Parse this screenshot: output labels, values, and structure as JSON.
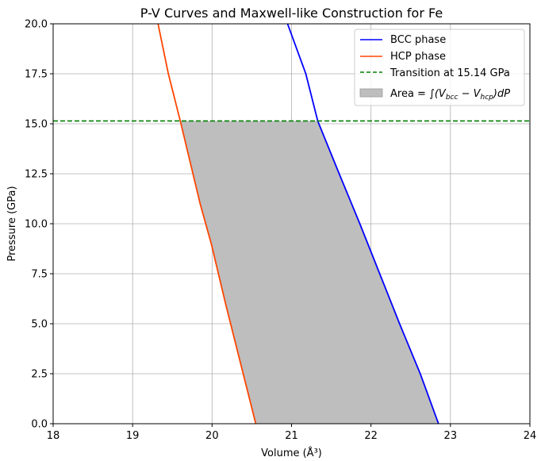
{
  "chart_data": {
    "type": "line",
    "title": "P-V Curves and Maxwell-like Construction for Fe",
    "xlabel": "Volume (Å³)",
    "ylabel": "Pressure (GPa)",
    "xlim": [
      18,
      24
    ],
    "ylim": [
      0,
      20
    ],
    "x_ticks": [
      "18",
      "19",
      "20",
      "21",
      "22",
      "23",
      "24"
    ],
    "y_ticks": [
      "0.0",
      "2.5",
      "5.0",
      "7.5",
      "10.0",
      "12.5",
      "15.0",
      "17.5",
      "20.0"
    ],
    "grid": true,
    "legend_position": "top-right",
    "series": [
      {
        "name": "BCC phase",
        "color": "#0000ff",
        "points": [
          [
            22.85,
            0.0
          ],
          [
            22.62,
            2.5
          ],
          [
            22.36,
            5.0
          ],
          [
            22.11,
            7.5
          ],
          [
            21.86,
            10.0
          ],
          [
            21.6,
            12.5
          ],
          [
            21.33,
            15.14
          ],
          [
            21.18,
            17.5
          ],
          [
            20.95,
            20.0
          ]
        ]
      },
      {
        "name": "HCP phase",
        "color": "#ff4500",
        "points": [
          [
            20.55,
            0.0
          ],
          [
            20.36,
            3.0
          ],
          [
            20.17,
            6.0
          ],
          [
            19.99,
            9.0
          ],
          [
            19.85,
            11.0
          ],
          [
            19.6,
            15.14
          ],
          [
            19.45,
            17.5
          ],
          [
            19.32,
            20.0
          ]
        ]
      }
    ],
    "transition": {
      "name": "Transition at 15.14 GPa",
      "pressure": 15.14,
      "color": "#008000",
      "style": "dashed"
    },
    "area": {
      "label_prefix": "Area = ",
      "label_formula": "∫(V",
      "sub1": "bcc",
      "mid": " − V",
      "sub2": "hcp",
      "label_suffix": ")dP",
      "color": "#bebebe",
      "pressure_range": [
        0,
        15.14
      ]
    }
  }
}
